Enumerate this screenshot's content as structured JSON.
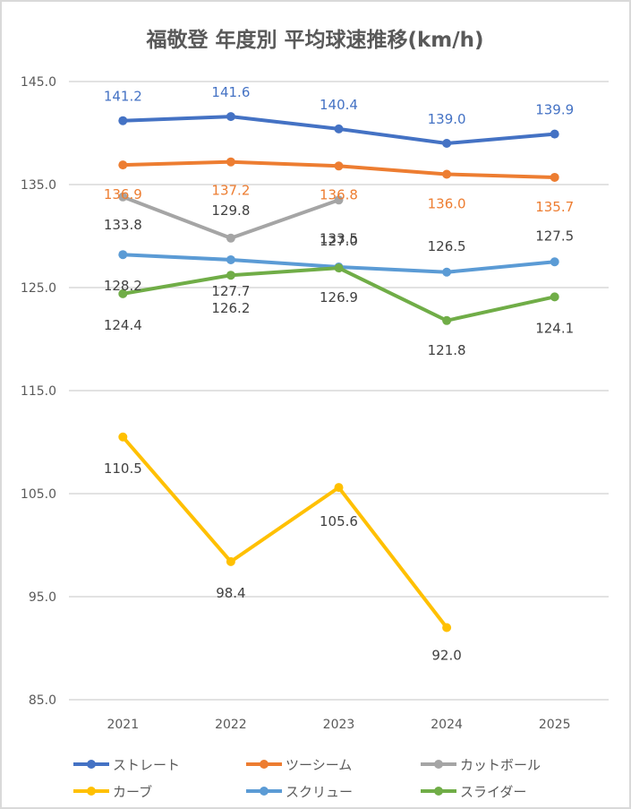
{
  "chart_data": {
    "type": "line",
    "title": "福敬登 年度別 平均球速推移(km/h)",
    "xlabel": "",
    "ylabel": "",
    "categories": [
      "2021",
      "2022",
      "2023",
      "2024",
      "2025"
    ],
    "ylim": [
      85.0,
      145.0
    ],
    "yticks": [
      "145.0",
      "135.0",
      "125.0",
      "115.0",
      "105.0",
      "95.0",
      "85.0"
    ],
    "ytick_values": [
      145,
      135,
      125,
      115,
      105,
      95,
      85
    ],
    "grid": true,
    "legend_position": "bottom",
    "series": [
      {
        "name": "ストレート",
        "color": "#4472c4",
        "label_color": "#4472c4",
        "values": [
          141.2,
          141.6,
          140.4,
          139.0,
          139.9
        ],
        "labels": [
          "141.2",
          "141.6",
          "140.4",
          "139.0",
          "139.9"
        ],
        "label_pos": "above"
      },
      {
        "name": "ツーシーム",
        "color": "#ed7d31",
        "label_color": "#ed7d31",
        "values": [
          136.9,
          137.2,
          136.8,
          136.0,
          135.7
        ],
        "labels": [
          "136.9",
          "137.2",
          "136.8",
          "136.0",
          "135.7"
        ],
        "label_pos": "below"
      },
      {
        "name": "カットボール",
        "color": "#a5a5a5",
        "label_color": "#404040",
        "values": [
          133.8,
          129.8,
          133.5,
          null,
          null
        ],
        "labels": [
          "133.8",
          "129.8",
          "133.5",
          null,
          null
        ],
        "label_pos": "below"
      },
      {
        "name": "カーブ",
        "color": "#ffc000",
        "label_color": "#404040",
        "values": [
          110.5,
          98.4,
          105.6,
          92.0,
          null
        ],
        "labels": [
          "110.5",
          "98.4",
          "105.6",
          "92.0",
          null
        ],
        "label_pos": "below"
      },
      {
        "name": "スクリュー",
        "color": "#5b9bd5",
        "label_color": "#404040",
        "values": [
          128.2,
          127.7,
          127.0,
          126.5,
          127.5
        ],
        "labels": [
          "128.2",
          "127.7",
          "127.0",
          "126.5",
          "127.5"
        ],
        "label_pos": "mixed"
      },
      {
        "name": "スライダー",
        "color": "#70ad47",
        "label_color": "#404040",
        "values": [
          124.4,
          126.2,
          126.9,
          121.8,
          124.1
        ],
        "labels": [
          "124.4",
          "126.2",
          "126.9",
          "121.8",
          "124.1"
        ],
        "label_pos": "below"
      }
    ]
  }
}
